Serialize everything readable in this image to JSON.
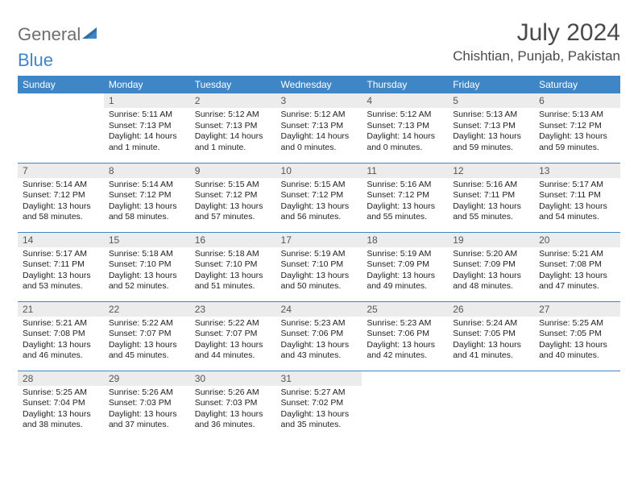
{
  "logo": {
    "word1": "General",
    "word2": "Blue"
  },
  "title": "July 2024",
  "location": "Chishtian, Punjab, Pakistan",
  "colors": {
    "header_bg": "#3f86c7",
    "header_fg": "#ffffff",
    "daynum_bg": "#ececec",
    "border": "#3f86c7",
    "text": "#222222",
    "logo_gray": "#6e6e6e",
    "logo_blue": "#3f86c7"
  },
  "weekdays": [
    "Sunday",
    "Monday",
    "Tuesday",
    "Wednesday",
    "Thursday",
    "Friday",
    "Saturday"
  ],
  "weeks": [
    [
      null,
      {
        "n": "1",
        "sr": "Sunrise: 5:11 AM",
        "ss": "Sunset: 7:13 PM",
        "dl1": "Daylight: 14 hours",
        "dl2": "and 1 minute."
      },
      {
        "n": "2",
        "sr": "Sunrise: 5:12 AM",
        "ss": "Sunset: 7:13 PM",
        "dl1": "Daylight: 14 hours",
        "dl2": "and 1 minute."
      },
      {
        "n": "3",
        "sr": "Sunrise: 5:12 AM",
        "ss": "Sunset: 7:13 PM",
        "dl1": "Daylight: 14 hours",
        "dl2": "and 0 minutes."
      },
      {
        "n": "4",
        "sr": "Sunrise: 5:12 AM",
        "ss": "Sunset: 7:13 PM",
        "dl1": "Daylight: 14 hours",
        "dl2": "and 0 minutes."
      },
      {
        "n": "5",
        "sr": "Sunrise: 5:13 AM",
        "ss": "Sunset: 7:13 PM",
        "dl1": "Daylight: 13 hours",
        "dl2": "and 59 minutes."
      },
      {
        "n": "6",
        "sr": "Sunrise: 5:13 AM",
        "ss": "Sunset: 7:12 PM",
        "dl1": "Daylight: 13 hours",
        "dl2": "and 59 minutes."
      }
    ],
    [
      {
        "n": "7",
        "sr": "Sunrise: 5:14 AM",
        "ss": "Sunset: 7:12 PM",
        "dl1": "Daylight: 13 hours",
        "dl2": "and 58 minutes."
      },
      {
        "n": "8",
        "sr": "Sunrise: 5:14 AM",
        "ss": "Sunset: 7:12 PM",
        "dl1": "Daylight: 13 hours",
        "dl2": "and 58 minutes."
      },
      {
        "n": "9",
        "sr": "Sunrise: 5:15 AM",
        "ss": "Sunset: 7:12 PM",
        "dl1": "Daylight: 13 hours",
        "dl2": "and 57 minutes."
      },
      {
        "n": "10",
        "sr": "Sunrise: 5:15 AM",
        "ss": "Sunset: 7:12 PM",
        "dl1": "Daylight: 13 hours",
        "dl2": "and 56 minutes."
      },
      {
        "n": "11",
        "sr": "Sunrise: 5:16 AM",
        "ss": "Sunset: 7:12 PM",
        "dl1": "Daylight: 13 hours",
        "dl2": "and 55 minutes."
      },
      {
        "n": "12",
        "sr": "Sunrise: 5:16 AM",
        "ss": "Sunset: 7:11 PM",
        "dl1": "Daylight: 13 hours",
        "dl2": "and 55 minutes."
      },
      {
        "n": "13",
        "sr": "Sunrise: 5:17 AM",
        "ss": "Sunset: 7:11 PM",
        "dl1": "Daylight: 13 hours",
        "dl2": "and 54 minutes."
      }
    ],
    [
      {
        "n": "14",
        "sr": "Sunrise: 5:17 AM",
        "ss": "Sunset: 7:11 PM",
        "dl1": "Daylight: 13 hours",
        "dl2": "and 53 minutes."
      },
      {
        "n": "15",
        "sr": "Sunrise: 5:18 AM",
        "ss": "Sunset: 7:10 PM",
        "dl1": "Daylight: 13 hours",
        "dl2": "and 52 minutes."
      },
      {
        "n": "16",
        "sr": "Sunrise: 5:18 AM",
        "ss": "Sunset: 7:10 PM",
        "dl1": "Daylight: 13 hours",
        "dl2": "and 51 minutes."
      },
      {
        "n": "17",
        "sr": "Sunrise: 5:19 AM",
        "ss": "Sunset: 7:10 PM",
        "dl1": "Daylight: 13 hours",
        "dl2": "and 50 minutes."
      },
      {
        "n": "18",
        "sr": "Sunrise: 5:19 AM",
        "ss": "Sunset: 7:09 PM",
        "dl1": "Daylight: 13 hours",
        "dl2": "and 49 minutes."
      },
      {
        "n": "19",
        "sr": "Sunrise: 5:20 AM",
        "ss": "Sunset: 7:09 PM",
        "dl1": "Daylight: 13 hours",
        "dl2": "and 48 minutes."
      },
      {
        "n": "20",
        "sr": "Sunrise: 5:21 AM",
        "ss": "Sunset: 7:08 PM",
        "dl1": "Daylight: 13 hours",
        "dl2": "and 47 minutes."
      }
    ],
    [
      {
        "n": "21",
        "sr": "Sunrise: 5:21 AM",
        "ss": "Sunset: 7:08 PM",
        "dl1": "Daylight: 13 hours",
        "dl2": "and 46 minutes."
      },
      {
        "n": "22",
        "sr": "Sunrise: 5:22 AM",
        "ss": "Sunset: 7:07 PM",
        "dl1": "Daylight: 13 hours",
        "dl2": "and 45 minutes."
      },
      {
        "n": "23",
        "sr": "Sunrise: 5:22 AM",
        "ss": "Sunset: 7:07 PM",
        "dl1": "Daylight: 13 hours",
        "dl2": "and 44 minutes."
      },
      {
        "n": "24",
        "sr": "Sunrise: 5:23 AM",
        "ss": "Sunset: 7:06 PM",
        "dl1": "Daylight: 13 hours",
        "dl2": "and 43 minutes."
      },
      {
        "n": "25",
        "sr": "Sunrise: 5:23 AM",
        "ss": "Sunset: 7:06 PM",
        "dl1": "Daylight: 13 hours",
        "dl2": "and 42 minutes."
      },
      {
        "n": "26",
        "sr": "Sunrise: 5:24 AM",
        "ss": "Sunset: 7:05 PM",
        "dl1": "Daylight: 13 hours",
        "dl2": "and 41 minutes."
      },
      {
        "n": "27",
        "sr": "Sunrise: 5:25 AM",
        "ss": "Sunset: 7:05 PM",
        "dl1": "Daylight: 13 hours",
        "dl2": "and 40 minutes."
      }
    ],
    [
      {
        "n": "28",
        "sr": "Sunrise: 5:25 AM",
        "ss": "Sunset: 7:04 PM",
        "dl1": "Daylight: 13 hours",
        "dl2": "and 38 minutes."
      },
      {
        "n": "29",
        "sr": "Sunrise: 5:26 AM",
        "ss": "Sunset: 7:03 PM",
        "dl1": "Daylight: 13 hours",
        "dl2": "and 37 minutes."
      },
      {
        "n": "30",
        "sr": "Sunrise: 5:26 AM",
        "ss": "Sunset: 7:03 PM",
        "dl1": "Daylight: 13 hours",
        "dl2": "and 36 minutes."
      },
      {
        "n": "31",
        "sr": "Sunrise: 5:27 AM",
        "ss": "Sunset: 7:02 PM",
        "dl1": "Daylight: 13 hours",
        "dl2": "and 35 minutes."
      },
      null,
      null,
      null
    ]
  ]
}
